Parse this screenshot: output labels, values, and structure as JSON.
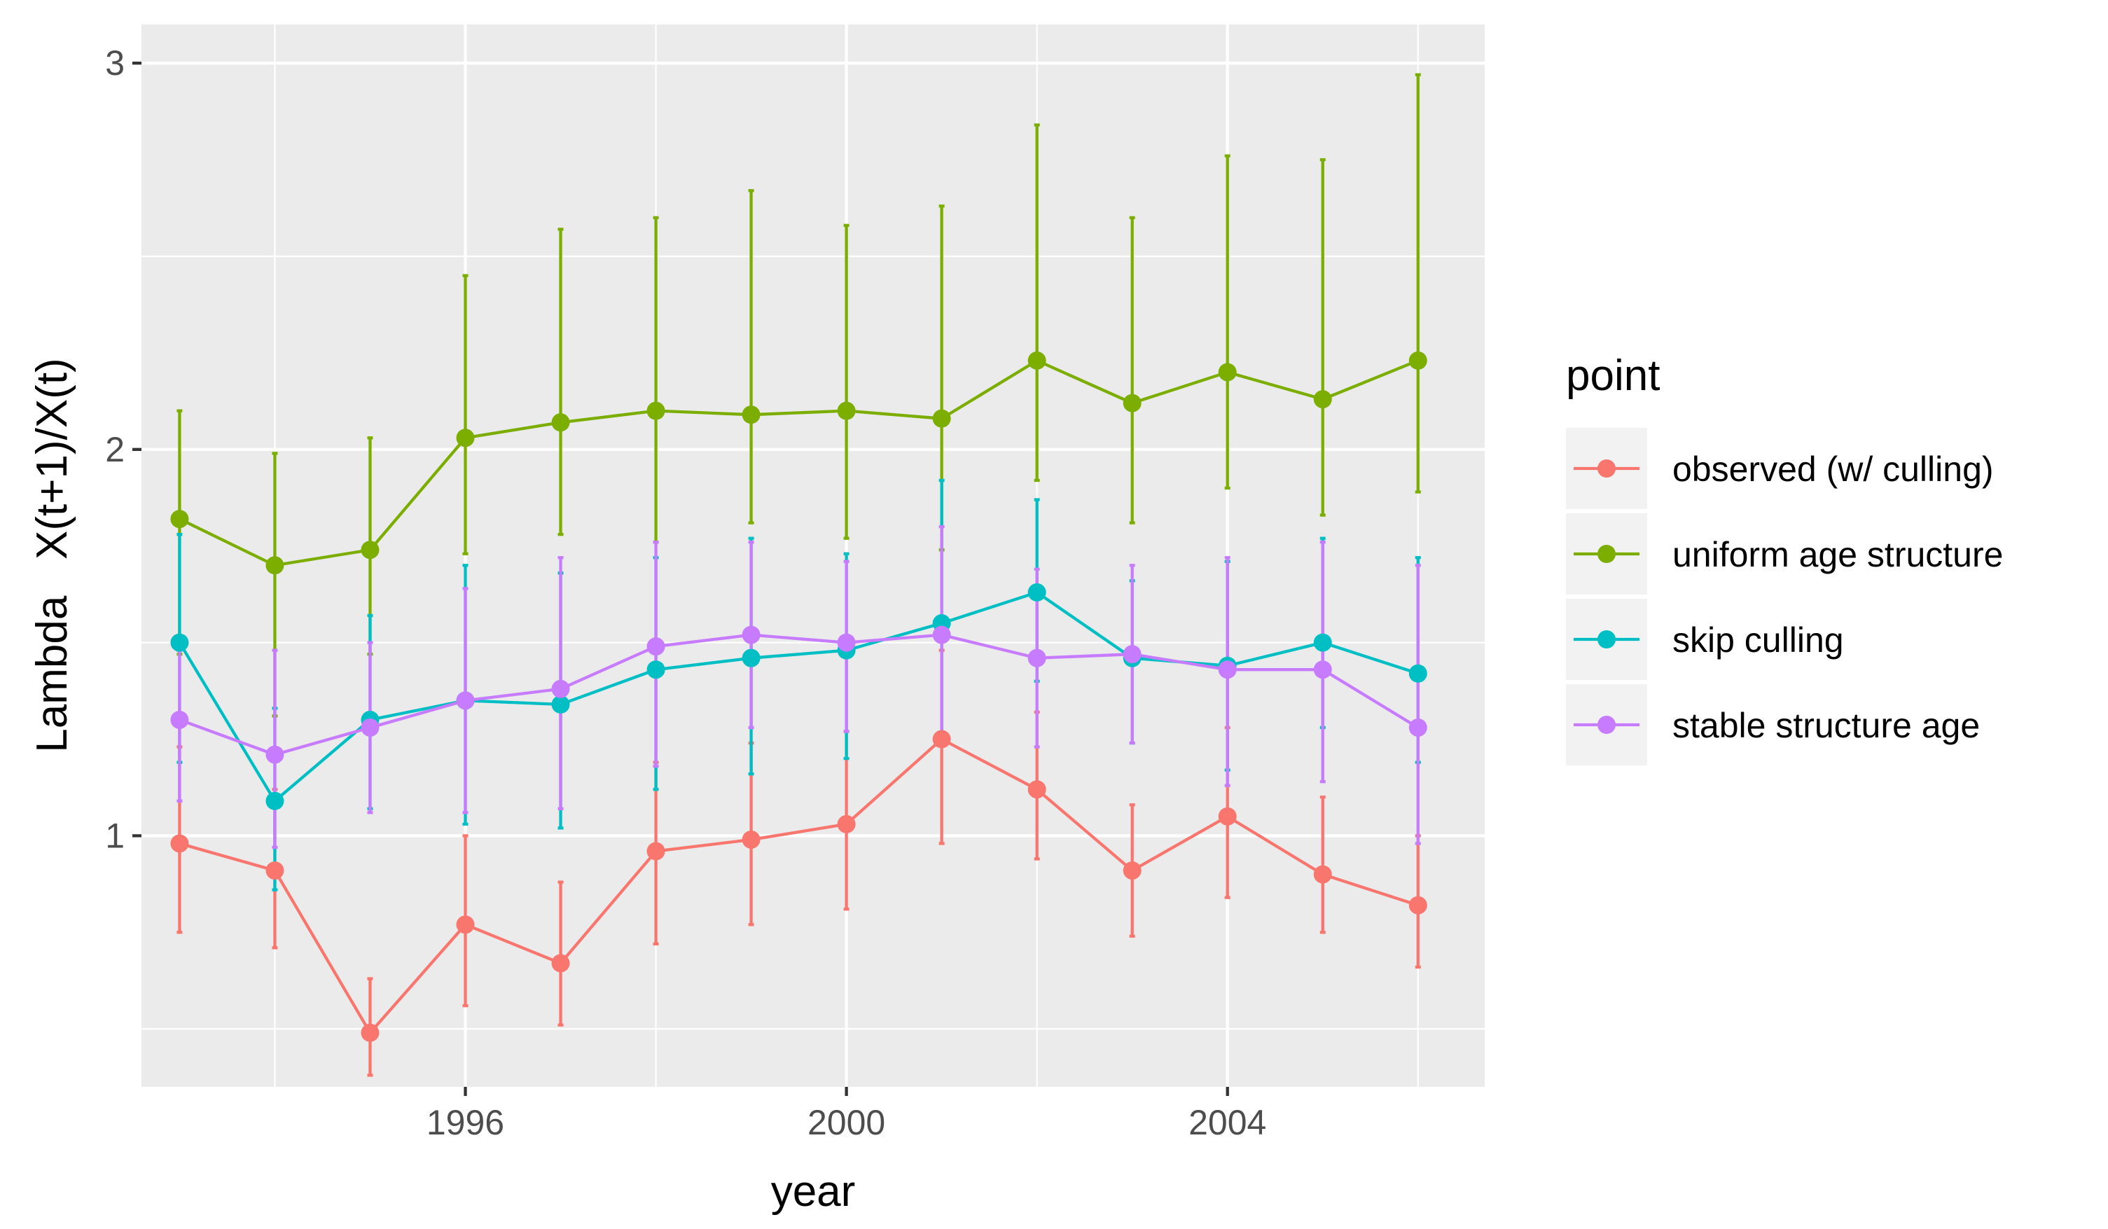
{
  "chart_data": {
    "type": "line",
    "xlabel": "year",
    "ylabel": "Lambda   X(t+1)/X(t)",
    "xlim": [
      1992.6,
      2006.7
    ],
    "ylim": [
      0.35,
      3.1
    ],
    "x_ticks": [
      1996,
      2000,
      2004
    ],
    "y_ticks": [
      1,
      2,
      3
    ],
    "grid": true,
    "legend": {
      "title": "point",
      "position": "right"
    },
    "x": [
      1993,
      1994,
      1995,
      1996,
      1997,
      1998,
      1999,
      2000,
      2001,
      2002,
      2003,
      2004,
      2005,
      2006
    ],
    "series": [
      {
        "name": "observed (w/ culling)",
        "color": "#F8766D",
        "values": [
          0.98,
          0.91,
          0.49,
          0.77,
          0.67,
          0.96,
          0.99,
          1.03,
          1.25,
          1.12,
          0.91,
          1.05,
          0.9,
          0.82
        ],
        "lower": [
          0.75,
          0.71,
          0.38,
          0.56,
          0.51,
          0.72,
          0.77,
          0.81,
          0.98,
          0.94,
          0.74,
          0.84,
          0.75,
          0.66
        ],
        "upper": [
          1.23,
          1.12,
          0.63,
          1.0,
          0.88,
          1.19,
          1.24,
          1.27,
          1.48,
          1.32,
          1.08,
          1.28,
          1.1,
          1.0
        ]
      },
      {
        "name": "uniform age structure",
        "color": "#7CAE00",
        "values": [
          1.82,
          1.7,
          1.74,
          2.03,
          2.07,
          2.1,
          2.09,
          2.1,
          2.08,
          2.23,
          2.12,
          2.2,
          2.13,
          2.23
        ],
        "lower": [
          1.47,
          1.31,
          1.47,
          1.73,
          1.78,
          1.76,
          1.81,
          1.77,
          1.74,
          1.92,
          1.81,
          1.9,
          1.83,
          1.89
        ],
        "upper": [
          2.1,
          1.99,
          2.03,
          2.45,
          2.57,
          2.6,
          2.67,
          2.58,
          2.63,
          2.84,
          2.6,
          2.76,
          2.75,
          2.97
        ]
      },
      {
        "name": "skip culling",
        "color": "#00BFC4",
        "values": [
          1.5,
          1.09,
          1.3,
          1.35,
          1.34,
          1.43,
          1.46,
          1.48,
          1.55,
          1.63,
          1.46,
          1.44,
          1.5,
          1.42
        ],
        "lower": [
          1.19,
          0.86,
          1.07,
          1.03,
          1.02,
          1.12,
          1.16,
          1.2,
          1.25,
          1.4,
          1.24,
          1.17,
          1.28,
          1.19
        ],
        "upper": [
          1.78,
          1.33,
          1.57,
          1.7,
          1.68,
          1.72,
          1.77,
          1.73,
          1.92,
          1.87,
          1.66,
          1.71,
          1.77,
          1.72
        ]
      },
      {
        "name": "stable structure age",
        "color": "#C77CFF",
        "values": [
          1.3,
          1.21,
          1.28,
          1.35,
          1.38,
          1.49,
          1.52,
          1.5,
          1.52,
          1.46,
          1.47,
          1.43,
          1.43,
          1.28
        ],
        "lower": [
          1.09,
          0.97,
          1.06,
          1.06,
          1.07,
          1.18,
          1.28,
          1.27,
          1.25,
          1.23,
          1.24,
          1.13,
          1.14,
          0.98
        ],
        "upper": [
          1.48,
          1.48,
          1.5,
          1.64,
          1.72,
          1.76,
          1.76,
          1.71,
          1.8,
          1.69,
          1.7,
          1.72,
          1.76,
          1.7
        ]
      }
    ]
  }
}
